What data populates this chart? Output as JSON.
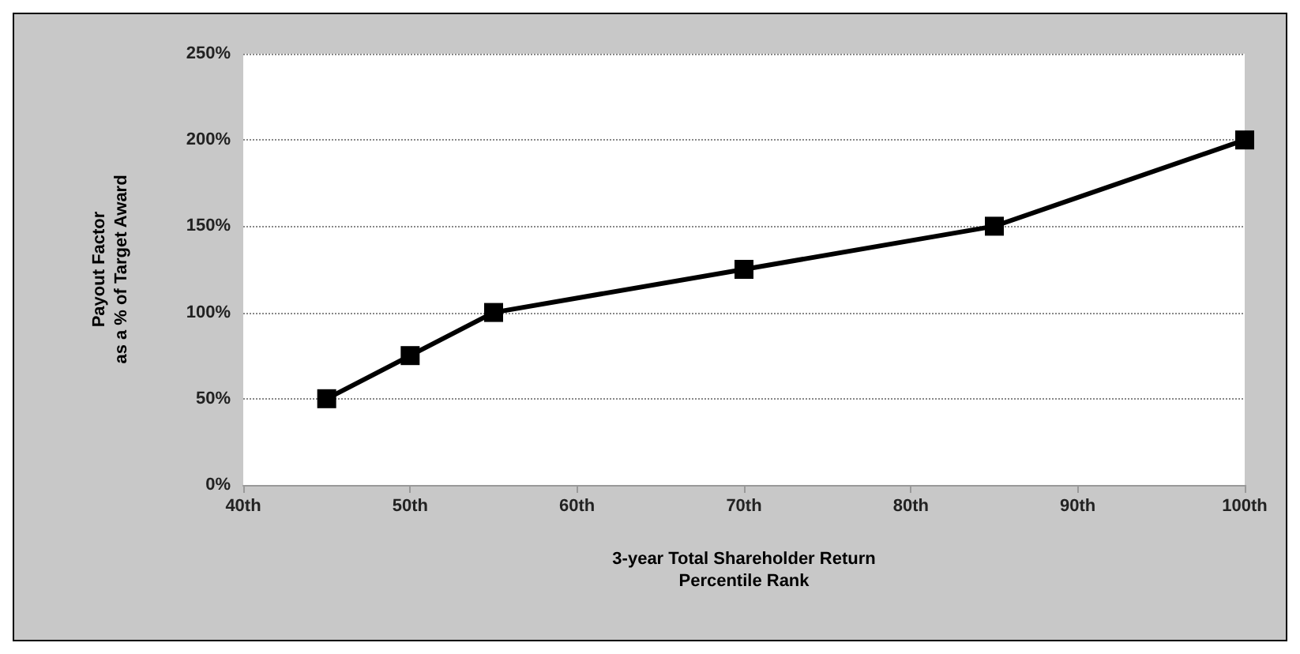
{
  "chart_data": {
    "type": "line",
    "xlabel": "3-year Total Shareholder Return\nPercentile Rank",
    "ylabel": "Payout Factor\nas a % of Target Award",
    "x": [
      45,
      50,
      55,
      70,
      85,
      100
    ],
    "series": [
      {
        "color": "#000000",
        "values": [
          50,
          75,
          100,
          125,
          150,
          200
        ]
      }
    ],
    "xlim": [
      40,
      100
    ],
    "xticks": [
      {
        "value": 40,
        "label": "40th"
      },
      {
        "value": 50,
        "label": "50th"
      },
      {
        "value": 60,
        "label": "60th"
      },
      {
        "value": 70,
        "label": "70th"
      },
      {
        "value": 80,
        "label": "80th"
      },
      {
        "value": 90,
        "label": "90th"
      },
      {
        "value": 100,
        "label": "100th"
      }
    ],
    "ylim": [
      0,
      250
    ],
    "yticks": [
      {
        "value": 0,
        "label": "0%"
      },
      {
        "value": 50,
        "label": "50%"
      },
      {
        "value": 100,
        "label": "100%"
      },
      {
        "value": 150,
        "label": "150%"
      },
      {
        "value": 200,
        "label": "200%"
      },
      {
        "value": 250,
        "label": "250%"
      }
    ],
    "grid": "y",
    "marker": "square",
    "line_style": "solid"
  }
}
